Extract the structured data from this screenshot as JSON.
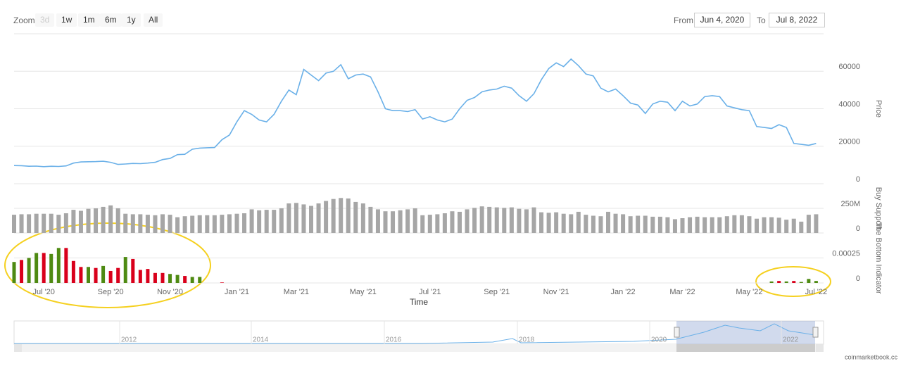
{
  "range_selector": {
    "zoom_label": "Zoom",
    "buttons": [
      "3d",
      "1w",
      "1m",
      "6m",
      "1y",
      "All"
    ],
    "from_label": "From",
    "from": "Jun 4, 2020",
    "to_label": "To",
    "to": "Jul 8, 2022"
  },
  "chart_data": [
    {
      "type": "line",
      "y_label": "Price",
      "color": "#6ab0e8",
      "ylim": [
        0,
        80000
      ],
      "yticks": [
        0,
        20000,
        40000,
        60000
      ],
      "grid": true,
      "values": [
        9700,
        9600,
        9300,
        9400,
        9100,
        9300,
        9200,
        9500,
        11000,
        11600,
        11700,
        11800,
        12000,
        11400,
        10300,
        10500,
        10800,
        10700,
        11000,
        11400,
        12900,
        13500,
        15500,
        15700,
        18400,
        19000,
        19200,
        19300,
        23500,
        26000,
        33000,
        39000,
        37000,
        34000,
        33000,
        37000,
        44000,
        50000,
        47500,
        61000,
        58000,
        55000,
        59000,
        60000,
        63500,
        56000,
        58000,
        58500,
        57000,
        49000,
        40000,
        39000,
        39000,
        38500,
        39500,
        34500,
        35700,
        34000,
        33000,
        34500,
        40000,
        44500,
        46000,
        49000,
        50000,
        50500,
        52000,
        51000,
        47000,
        44000,
        48000,
        55500,
        61500,
        64500,
        62500,
        66500,
        63000,
        58500,
        57500,
        51000,
        49000,
        50500,
        47000,
        43000,
        42000,
        37500,
        42500,
        44000,
        43500,
        39000,
        44000,
        41500,
        42500,
        46500,
        47000,
        46500,
        41500,
        40500,
        39500,
        39000,
        30500,
        30000,
        29500,
        31500,
        30000,
        21500,
        21000,
        20500,
        21500
      ]
    },
    {
      "type": "bar",
      "y_label": "Buy Support",
      "color": "#a6a6a6",
      "ylim": [
        0,
        500000000
      ],
      "yticks": [
        0,
        {
          "value": 250000000,
          "label": "250M"
        }
      ],
      "grid": true,
      "values": [
        185000000.0,
        190000000.0,
        190000000.0,
        195000000.0,
        195000000.0,
        195000000.0,
        185000000.0,
        200000000.0,
        235000000.0,
        225000000.0,
        245000000.0,
        250000000.0,
        265000000.0,
        280000000.0,
        250000000.0,
        195000000.0,
        190000000.0,
        190000000.0,
        185000000.0,
        180000000.0,
        190000000.0,
        185000000.0,
        160000000.0,
        170000000.0,
        175000000.0,
        180000000.0,
        180000000.0,
        180000000.0,
        185000000.0,
        190000000.0,
        195000000.0,
        200000000.0,
        240000000.0,
        230000000.0,
        235000000.0,
        235000000.0,
        250000000.0,
        300000000.0,
        305000000.0,
        290000000.0,
        275000000.0,
        300000000.0,
        325000000.0,
        345000000.0,
        355000000.0,
        350000000.0,
        315000000.0,
        300000000.0,
        265000000.0,
        240000000.0,
        220000000.0,
        220000000.0,
        230000000.0,
        240000000.0,
        250000000.0,
        180000000.0,
        185000000.0,
        190000000.0,
        200000000.0,
        220000000.0,
        215000000.0,
        240000000.0,
        255000000.0,
        270000000.0,
        265000000.0,
        260000000.0,
        255000000.0,
        260000000.0,
        245000000.0,
        240000000.0,
        260000000.0,
        210000000.0,
        205000000.0,
        210000000.0,
        195000000.0,
        190000000.0,
        215000000.0,
        185000000.0,
        175000000.0,
        170000000.0,
        215000000.0,
        195000000.0,
        190000000.0,
        170000000.0,
        175000000.0,
        175000000.0,
        165000000.0,
        165000000.0,
        160000000.0,
        140000000.0,
        150000000.0,
        160000000.0,
        165000000.0,
        160000000.0,
        160000000.0,
        160000000.0,
        170000000.0,
        180000000.0,
        180000000.0,
        170000000.0,
        145000000.0,
        160000000.0,
        160000000.0,
        155000000.0,
        135000000.0,
        145000000.0,
        115000000.0,
        185000000.0,
        190000000.0
      ]
    },
    {
      "type": "bar",
      "y_label": "The Bottom Indicator",
      "x_label": "Time",
      "ylim": [
        0,
        0.0005
      ],
      "yticks": [
        0,
        0.00025
      ],
      "grid": true,
      "categories": [
        null,
        null,
        null,
        null,
        "Jul '20",
        null,
        null,
        null,
        null,
        null,
        null,
        null,
        null,
        "Sep '20",
        null,
        null,
        null,
        null,
        null,
        null,
        null,
        "Nov '20",
        null,
        null,
        null,
        null,
        null,
        null,
        null,
        null,
        "Jan '21",
        null,
        null,
        null,
        null,
        null,
        null,
        null,
        "Mar '21",
        null,
        null,
        null,
        null,
        null,
        null,
        null,
        null,
        "May '21",
        null,
        null,
        null,
        null,
        null,
        null,
        null,
        null,
        "Jul '21",
        null,
        null,
        null,
        null,
        null,
        null,
        null,
        null,
        "Sep '21",
        null,
        null,
        null,
        null,
        null,
        null,
        null,
        "Nov '21",
        null,
        null,
        null,
        null,
        null,
        null,
        null,
        null,
        "Jan '22",
        null,
        null,
        null,
        null,
        null,
        null,
        null,
        "Mar '22",
        null,
        null,
        null,
        null,
        null,
        null,
        null,
        null,
        "May '22",
        null,
        null,
        null,
        null,
        null,
        null,
        null,
        null,
        "Jul '22"
      ],
      "values": [
        0.00021,
        0.00023,
        0.00025,
        0.0003,
        0.0003,
        0.00029,
        0.00035,
        0.00035,
        0.00022,
        0.00016,
        0.00016,
        0.00015,
        0.00017,
        0.00012,
        0.00015,
        0.00026,
        0.00024,
        0.00013,
        0.00014,
        0.0001,
        0.0001,
        9e-05,
        8e-05,
        7e-05,
        6e-05,
        6e-05,
        0,
        0,
        5e-06,
        0,
        0,
        0,
        0,
        0,
        0,
        0,
        0,
        0,
        0,
        0,
        0,
        0,
        0,
        0,
        0,
        0,
        0,
        0,
        0,
        0,
        0,
        0,
        0,
        0,
        0,
        0,
        0,
        0,
        0,
        0,
        0,
        0,
        0,
        0,
        0,
        0,
        0,
        0,
        0,
        0,
        0,
        0,
        0,
        0,
        0,
        0,
        0,
        0,
        0,
        0,
        0,
        0,
        0,
        0,
        0,
        0,
        0,
        0,
        0,
        0,
        0,
        0,
        0,
        0,
        0,
        0,
        0,
        0,
        0,
        0,
        0,
        0,
        1.5e-05,
        2e-05,
        1.5e-05,
        2e-05,
        1e-05,
        4e-05,
        2e-05
      ],
      "point_colors": [
        "#4e8a12",
        "#d9001b",
        "#4e8a12",
        "#4e8a12",
        "#d9001b",
        "#4e8a12",
        "#4e8a12",
        "#d9001b",
        "#d9001b",
        "#d9001b",
        "#4e8a12",
        "#d9001b",
        "#4e8a12",
        "#d9001b",
        "#d9001b",
        "#4e8a12",
        "#d9001b",
        "#d9001b",
        "#d9001b",
        "#d9001b",
        "#d9001b",
        "#4e8a12",
        "#4e8a12",
        "#d9001b",
        "#4e8a12",
        "#4e8a12",
        "#d9001b",
        "#d9001b",
        "#d9001b",
        "#d9001b",
        "#d9001b",
        "#d9001b",
        "#d9001b",
        "#d9001b",
        "#d9001b",
        "#d9001b",
        "#d9001b",
        "#d9001b",
        "#d9001b",
        "#d9001b",
        "#d9001b",
        "#d9001b",
        "#d9001b",
        "#d9001b",
        "#d9001b",
        "#d9001b",
        "#d9001b",
        "#d9001b",
        "#d9001b",
        "#d9001b",
        "#d9001b",
        "#d9001b",
        "#d9001b",
        "#d9001b",
        "#d9001b",
        "#d9001b",
        "#d9001b",
        "#d9001b",
        "#d9001b",
        "#d9001b",
        "#d9001b",
        "#d9001b",
        "#d9001b",
        "#d9001b",
        "#d9001b",
        "#d9001b",
        "#d9001b",
        "#d9001b",
        "#d9001b",
        "#d9001b",
        "#d9001b",
        "#d9001b",
        "#d9001b",
        "#d9001b",
        "#d9001b",
        "#d9001b",
        "#d9001b",
        "#d9001b",
        "#d9001b",
        "#d9001b",
        "#d9001b",
        "#d9001b",
        "#d9001b",
        "#d9001b",
        "#d9001b",
        "#d9001b",
        "#d9001b",
        "#d9001b",
        "#d9001b",
        "#d9001b",
        "#d9001b",
        "#d9001b",
        "#d9001b",
        "#d9001b",
        "#d9001b",
        "#d9001b",
        "#d9001b",
        "#d9001b",
        "#d9001b",
        "#d9001b",
        "#d9001b",
        "#d9001b",
        "#4e8a12",
        "#d9001b",
        "#4e8a12",
        "#d9001b",
        "#4e8a12",
        "#4e8a12",
        "#4e8a12"
      ]
    }
  ],
  "navigator": {
    "labels": [
      "2012",
      "2014",
      "2016",
      "2018",
      "2020",
      "2022"
    ]
  },
  "credit": "coinmarketbook.cc"
}
